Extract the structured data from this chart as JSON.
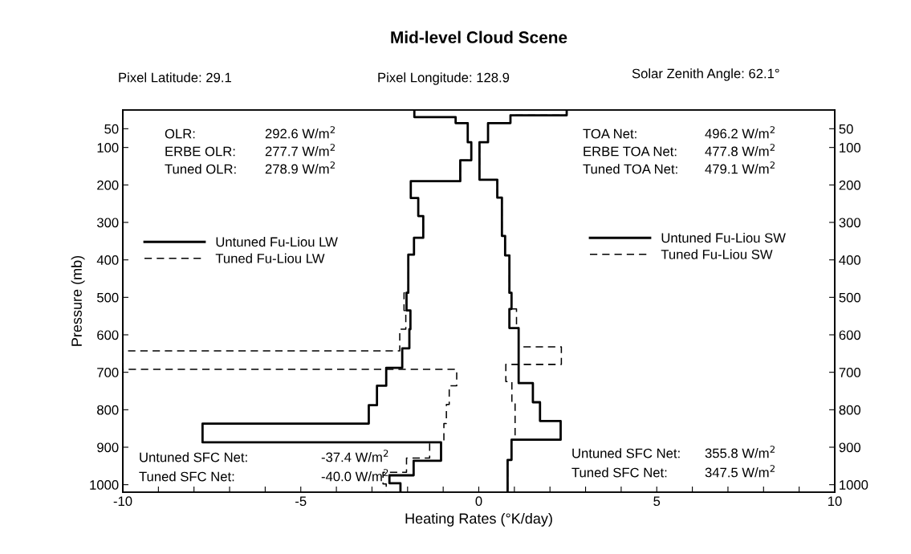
{
  "chart_data": {
    "type": "step",
    "orientation": "horizontal",
    "title": "Mid-level Cloud Scene",
    "xlabel": "Heating Rates (°K/day)",
    "ylabel": "Pressure (mb)",
    "xlim": [
      -10,
      10
    ],
    "xticks": [
      -10,
      {
        "value": -9,
        "label": null
      },
      {
        "value": -8,
        "label": null
      },
      {
        "value": -7,
        "label": null
      },
      {
        "value": -6,
        "label": null
      },
      -5,
      {
        "value": -4,
        "label": null
      },
      {
        "value": -3,
        "label": null
      },
      {
        "value": -2,
        "label": null
      },
      {
        "value": -1,
        "label": null
      },
      0,
      {
        "value": 1,
        "label": null
      },
      {
        "value": 2,
        "label": null
      },
      {
        "value": 3,
        "label": null
      },
      {
        "value": 4,
        "label": null
      },
      5,
      {
        "value": 6,
        "label": null
      },
      {
        "value": 7,
        "label": null
      },
      {
        "value": 8,
        "label": null
      },
      {
        "value": 9,
        "label": null
      },
      10
    ],
    "ylim": [
      1020,
      0
    ],
    "yticks": [
      50,
      100,
      200,
      300,
      400,
      500,
      600,
      700,
      800,
      900,
      1000
    ],
    "y2lim": [
      1020,
      0
    ],
    "y2ticks": [
      50,
      100,
      200,
      300,
      400,
      500,
      600,
      700,
      800,
      900,
      1000
    ],
    "legend": "top",
    "grid": false,
    "series": [
      {
        "name": "Untuned Fu-Liou LW",
        "color": "#000000",
        "line_style": "solid",
        "x": [
          0,
          19,
          35,
          86,
          134,
          190,
          235,
          283,
          341,
          386,
          488,
          535,
          585,
          636,
          688,
          736,
          788,
          837,
          887,
          936,
          975,
          996,
          1020
        ],
        "values": [
          -1.81,
          -0.65,
          -0.31,
          -0.21,
          -0.52,
          -1.91,
          -1.7,
          -1.56,
          -1.82,
          -1.98,
          -2.03,
          -1.92,
          -1.95,
          -2.15,
          -2.6,
          -2.86,
          -3.09,
          -7.76,
          -1.06,
          -1.83,
          -2.51,
          -2.2,
          -2.2
        ]
      },
      {
        "name": "Tuned Fu-Liou LW",
        "color": "#000000",
        "line_style": "dashed",
        "x": [
          0,
          19,
          35,
          86,
          134,
          190,
          235,
          283,
          341,
          386,
          488,
          535,
          585,
          643,
          692,
          736,
          786,
          837,
          887,
          929,
          967,
          998,
          1020
        ],
        "values": [
          -1.81,
          -0.65,
          -0.31,
          -0.21,
          -0.52,
          -1.91,
          -1.7,
          -1.56,
          -1.82,
          -1.98,
          -2.1,
          -2.05,
          -2.22,
          -10,
          -0.62,
          -0.83,
          -0.91,
          -0.98,
          -1.38,
          -2.03,
          -2.69,
          -2.6,
          -2.6
        ]
      },
      {
        "name": "Untuned Fu-Liou SW",
        "color": "#000000",
        "line_style": "solid",
        "x": [
          0,
          14,
          35,
          86,
          186,
          234,
          336,
          388,
          488,
          531,
          582,
          729,
          780,
          830,
          880,
          934,
          1020
        ],
        "values": [
          2.47,
          0.89,
          0.26,
          0.02,
          0.52,
          0.65,
          0.74,
          0.86,
          0.92,
          0.86,
          1.12,
          1.52,
          1.72,
          2.3,
          0.92,
          0.81,
          0.81
        ]
      },
      {
        "name": "Tuned Fu-Liou SW",
        "color": "#000000",
        "line_style": "dashed",
        "x": [
          0,
          14,
          35,
          86,
          186,
          234,
          336,
          388,
          488,
          531,
          582,
          632,
          679,
          725,
          783,
          880,
          934,
          1020
        ],
        "values": [
          2.47,
          0.89,
          0.26,
          0.02,
          0.52,
          0.65,
          0.74,
          0.86,
          0.92,
          1.06,
          1.12,
          2.32,
          0.76,
          0.93,
          1.02,
          0.92,
          0.81,
          0.81
        ]
      }
    ],
    "annotations": [
      "Pixel Latitude: 29.1",
      "Pixel Longitude: 128.9",
      "Solar Zenith Angle: 62.1°",
      "OLR:",
      "292.6 W/m$^{2}$",
      "ERBE OLR:",
      "277.7 W/m$^{2}$",
      "Tuned OLR:",
      "278.9 W/m$^{2}$",
      "TOA Net:",
      "496.2 W/m$^{2}$",
      "ERBE TOA Net:",
      "477.8 W/m$^{2}$",
      "Tuned TOA Net:",
      "479.1 W/m$^{2}$",
      "Untuned SFC Net:",
      "-37.4 W/m$^{2}$",
      "Tuned SFC Net:",
      "-40.0 W/m$^{2}$",
      "Untuned SFC Net:",
      "355.8 W/m$^{2}$",
      "Tuned SFC Net:",
      "347.5 W/m$^{2}$"
    ]
  }
}
